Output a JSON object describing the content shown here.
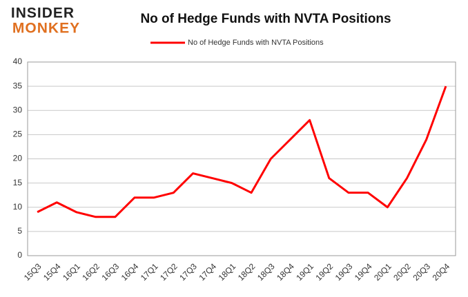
{
  "logo": {
    "top": "INSIDER",
    "bottom": "MONKEY"
  },
  "chart_data": {
    "type": "line",
    "title": "No of Hedge Funds with NVTA Positions",
    "categories": [
      "15Q3",
      "15Q4",
      "16Q1",
      "16Q2",
      "16Q3",
      "16Q4",
      "17Q1",
      "17Q2",
      "17Q3",
      "17Q4",
      "18Q1",
      "18Q2",
      "18Q3",
      "18Q4",
      "19Q1",
      "19Q2",
      "19Q3",
      "19Q4",
      "20Q1",
      "20Q2",
      "20Q3",
      "20Q4"
    ],
    "series": [
      {
        "name": "No of Hedge Funds with NVTA Positions",
        "color": "#ff0000",
        "values": [
          9,
          11,
          9,
          8,
          8,
          12,
          12,
          13,
          17,
          16,
          15,
          13,
          20,
          24,
          28,
          16,
          13,
          13,
          10,
          16,
          24,
          35
        ]
      }
    ],
    "ylim": [
      0,
      40
    ],
    "yticks": [
      0,
      5,
      10,
      15,
      20,
      25,
      30,
      35,
      40
    ],
    "grid": true,
    "legend": "top"
  }
}
